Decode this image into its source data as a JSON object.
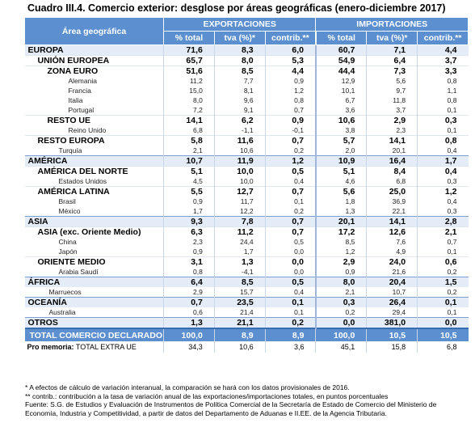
{
  "title": "Cuadro III.4. Comercio exterior: desglose por áreas geográficas (enero-diciembre 2017)",
  "table": {
    "header": {
      "area": "Área geográfica",
      "groups": [
        "EXPORTACIONES",
        "IMPORTACIONES"
      ],
      "columns": [
        "% total",
        "tva (%)*",
        "contrib.**",
        "% total",
        "tva (%)*",
        "contrib.**"
      ]
    },
    "rows": [
      {
        "label": "EUROPA",
        "values": [
          "71,6",
          "8,3",
          "6,0",
          "60,7",
          "7,1",
          "4,4"
        ],
        "children": [
          {
            "label": "UNIÓN EUROPEA",
            "values": [
              "65,7",
              "8,0",
              "5,3",
              "54,9",
              "6,4",
              "3,7"
            ],
            "children": [
              {
                "label": "ZONA EURO",
                "values": [
                  "51,6",
                  "8,5",
                  "4,4",
                  "44,4",
                  "7,3",
                  "3,3"
                ],
                "children": [
                  {
                    "label": "Alemania",
                    "values": [
                      "11,2",
                      "7,7",
                      "0,9",
                      "12,9",
                      "5,6",
                      "0,8"
                    ]
                  },
                  {
                    "label": "Francia",
                    "values": [
                      "15,0",
                      "8,1",
                      "1,2",
                      "10,1",
                      "9,7",
                      "1,1"
                    ]
                  },
                  {
                    "label": "Italia",
                    "values": [
                      "8,0",
                      "9,6",
                      "0,8",
                      "6,7",
                      "11,8",
                      "0,8"
                    ]
                  },
                  {
                    "label": "Portugal",
                    "values": [
                      "7,2",
                      "9,1",
                      "0,7",
                      "3,6",
                      "3,7",
                      "0,1"
                    ]
                  }
                ]
              },
              {
                "label": "RESTO UE",
                "values": [
                  "14,1",
                  "6,2",
                  "0,9",
                  "10,6",
                  "2,9",
                  "0,3"
                ],
                "children": [
                  {
                    "label": "Reino Unido",
                    "values": [
                      "6,8",
                      "-1,1",
                      "-0,1",
                      "3,8",
                      "2,3",
                      "0,1"
                    ]
                  }
                ]
              }
            ]
          },
          {
            "label": "RESTO EUROPA",
            "values": [
              "5,8",
              "11,6",
              "0,7",
              "5,7",
              "14,1",
              "0,8"
            ],
            "children": [
              {
                "label": "Turquía",
                "values": [
                  "2,1",
                  "10,6",
                  "0,2",
                  "2,0",
                  "20,1",
                  "0,4"
                ]
              }
            ]
          }
        ]
      },
      {
        "label": "AMÉRICA",
        "values": [
          "10,7",
          "11,9",
          "1,2",
          "10,9",
          "16,4",
          "1,7"
        ],
        "children": [
          {
            "label": "AMÉRICA DEL NORTE",
            "values": [
              "5,1",
              "10,0",
              "0,5",
              "5,1",
              "8,4",
              "0,4"
            ],
            "children": [
              {
                "label": "Estados Unidos",
                "values": [
                  "4,5",
                  "10,0",
                  "0,4",
                  "4,6",
                  "6,8",
                  "0,3"
                ]
              }
            ]
          },
          {
            "label": "AMÉRICA LATINA",
            "values": [
              "5,5",
              "12,7",
              "0,7",
              "5,6",
              "25,0",
              "1,2"
            ],
            "children": [
              {
                "label": "Brasil",
                "values": [
                  "0,9",
                  "11,7",
                  "0,1",
                  "1,8",
                  "36,9",
                  "0,4"
                ]
              },
              {
                "label": "México",
                "values": [
                  "1,7",
                  "12,2",
                  "0,2",
                  "1,3",
                  "22,1",
                  "0,3"
                ]
              }
            ]
          }
        ]
      },
      {
        "label": "ASIA",
        "values": [
          "9,3",
          "7,8",
          "0,7",
          "20,1",
          "14,1",
          "2,8"
        ],
        "children": [
          {
            "label": "ASIA (exc. Oriente Medio)",
            "values": [
              "6,3",
              "11,2",
              "0,7",
              "17,2",
              "12,6",
              "2,1"
            ],
            "children": [
              {
                "label": "China",
                "values": [
                  "2,3",
                  "24,4",
                  "0,5",
                  "8,5",
                  "7,6",
                  "0,7"
                ]
              },
              {
                "label": "Japón",
                "values": [
                  "0,9",
                  "1,7",
                  "0,0",
                  "1,2",
                  "4,9",
                  "0,1"
                ]
              }
            ]
          },
          {
            "label": "ORIENTE MEDIO",
            "values": [
              "3,1",
              "1,3",
              "0,0",
              "2,9",
              "24,0",
              "0,6"
            ],
            "children": [
              {
                "label": "Arabia Saudí",
                "values": [
                  "0,8",
                  "-4,1",
                  "0,0",
                  "0,9",
                  "21,6",
                  "0,2"
                ]
              }
            ]
          }
        ]
      },
      {
        "label": "ÁFRICA",
        "values": [
          "6,4",
          "8,5",
          "0,5",
          "8,0",
          "20,4",
          "1,5"
        ],
        "children": [
          {
            "label": "Marruecos",
            "values": [
              "2,9",
              "15,7",
              "0,4",
              "2,1",
              "10,7",
              "0,2"
            ]
          }
        ]
      },
      {
        "label": "OCEANÍA",
        "values": [
          "0,7",
          "23,5",
          "0,1",
          "0,3",
          "26,4",
          "0,1"
        ],
        "children": [
          {
            "label": "Australia",
            "values": [
              "0,6",
              "21,4",
              "0,1",
              "0,2",
              "29,4",
              "0,1"
            ]
          }
        ]
      },
      {
        "label": "OTROS",
        "values": [
          "1,3",
          "21,1",
          "0,2",
          "0,0",
          "381,0",
          "0,0"
        ]
      }
    ],
    "total": {
      "label": "TOTAL COMERCIO DECLARADO",
      "values": [
        "100,0",
        "8,9",
        "8,9",
        "100,0",
        "10,5",
        "10,5"
      ]
    },
    "memo": {
      "prefix": "Pro memoria:",
      "label": "TOTAL EXTRA UE",
      "values": [
        "34,3",
        "10,6",
        "3,6",
        "45,1",
        "15,8",
        "6,8"
      ]
    }
  },
  "footnotes": [
    "* A efectos de cálculo de variación interanual, la comparación se hará con los datos provisionales de 2016.",
    "** contrib.: contribución a la tasa de variación anual de las exportaciones/importaciones totales, en puntos porcentuales",
    "Fuente: S.G. de Estudios y Evaluación de Instrumentos de Política Comercial de la Secretaría de Estado de Comercio del Ministerio de Economía, Industria y Competitividad, a partir de datos del Departamento de Aduanas e II.EE. de la Agencia Tributaria."
  ]
}
